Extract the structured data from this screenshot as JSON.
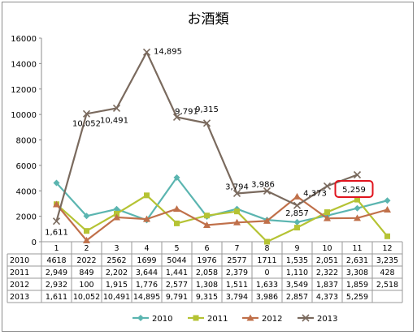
{
  "chart_data": {
    "type": "line",
    "title": "お酒類",
    "categories": [
      "1",
      "2",
      "3",
      "4",
      "5",
      "6",
      "7",
      "8",
      "9",
      "10",
      "11",
      "12"
    ],
    "ylim": [
      0,
      16000
    ],
    "yticks": [
      "0",
      "2000",
      "4000",
      "6000",
      "8000",
      "10000",
      "12000",
      "14000",
      "16000"
    ],
    "grid": false,
    "legend": "bottom",
    "series": [
      {
        "name": "2010",
        "color": "#5bb5b0",
        "marker": "diamond",
        "values": [
          4618,
          2022,
          2562,
          1699,
          5044,
          1976,
          2577,
          1711,
          1535,
          2051,
          2631,
          3235
        ],
        "table": [
          "4618",
          "2022",
          "2562",
          "1699",
          "5044",
          "1976",
          "2577",
          "1711",
          "1,535",
          "2,051",
          "2,631",
          "3,235"
        ]
      },
      {
        "name": "2011",
        "color": "#b5c334",
        "marker": "square",
        "values": [
          2949,
          849,
          2202,
          3644,
          1441,
          2058,
          2379,
          0,
          1110,
          2322,
          3308,
          428
        ],
        "table": [
          "2,949",
          "849",
          "2,202",
          "3,644",
          "1,441",
          "2,058",
          "2,379",
          "0",
          "1,110",
          "2,322",
          "3,308",
          "428"
        ]
      },
      {
        "name": "2012",
        "color": "#c0704a",
        "marker": "triangle",
        "values": [
          2932,
          100,
          1915,
          1776,
          2577,
          1308,
          1511,
          1633,
          3549,
          1837,
          1859,
          2518
        ],
        "table": [
          "2,932",
          "100",
          "1,915",
          "1,776",
          "2,577",
          "1,308",
          "1,511",
          "1,633",
          "3,549",
          "1,837",
          "1,859",
          "2,518"
        ]
      },
      {
        "name": "2013",
        "color": "#7a6a5e",
        "marker": "x",
        "values": [
          1611,
          10052,
          10491,
          14895,
          9791,
          9315,
          3794,
          3986,
          2857,
          4373,
          5259,
          null
        ],
        "table": [
          "1,611",
          "10,052",
          "10,491",
          "14,895",
          "9,791",
          "9,315",
          "3,794",
          "3,986",
          "2,857",
          "4,373",
          "5,259",
          ""
        ]
      }
    ],
    "annotations": [
      "1,611",
      "10,052",
      "10,491",
      "14,895",
      "9,791",
      "9,315",
      "3,794",
      "3,986",
      "2,857",
      "4,373",
      "5,259"
    ],
    "highlight": {
      "text": "5,259",
      "color": "#e0141e"
    }
  }
}
